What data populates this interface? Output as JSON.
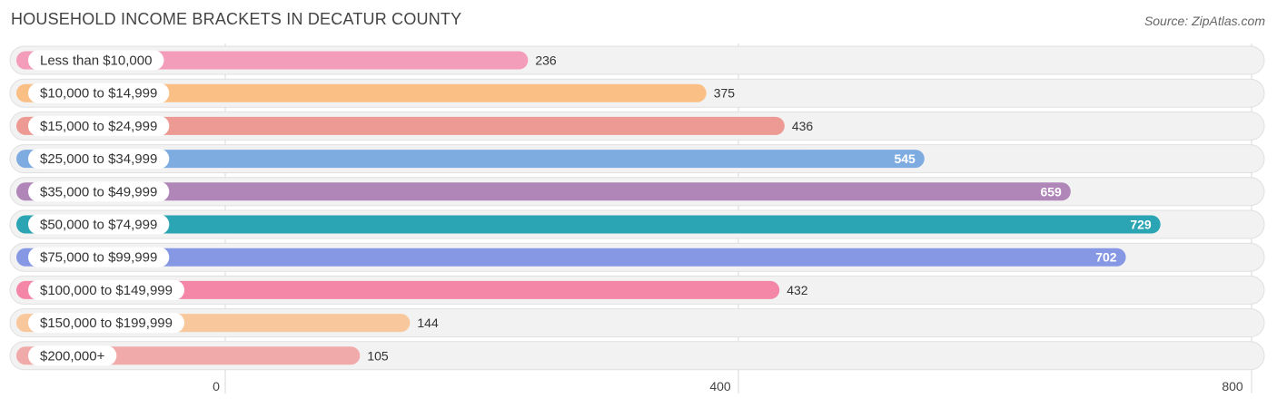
{
  "header": {
    "title": "HOUSEHOLD INCOME BRACKETS IN DECATUR COUNTY",
    "source": "Source: ZipAtlas.com"
  },
  "chart_data": {
    "type": "bar",
    "orientation": "horizontal",
    "title": "HOUSEHOLD INCOME BRACKETS IN DECATUR COUNTY",
    "categories": [
      "Less than $10,000",
      "$10,000 to $14,999",
      "$15,000 to $24,999",
      "$25,000 to $34,999",
      "$35,000 to $49,999",
      "$50,000 to $74,999",
      "$75,000 to $99,999",
      "$100,000 to $149,999",
      "$150,000 to $199,999",
      "$200,000+"
    ],
    "values": [
      236,
      375,
      436,
      545,
      659,
      729,
      702,
      432,
      144,
      105
    ],
    "value_labels": [
      "236",
      "375",
      "436",
      "545",
      "659",
      "729",
      "702",
      "432",
      "144",
      "105"
    ],
    "colors": [
      "#f49dba",
      "#f9bf85",
      "#ee9a94",
      "#7eace0",
      "#b085b8",
      "#2ba5b4",
      "#8697e3",
      "#f487a8",
      "#f8c89c",
      "#f0aaaa"
    ],
    "xlim": [
      0,
      800
    ],
    "xticks": [
      "0",
      "400",
      "800"
    ],
    "tick_values": [
      0,
      400,
      800
    ],
    "grid": true
  }
}
